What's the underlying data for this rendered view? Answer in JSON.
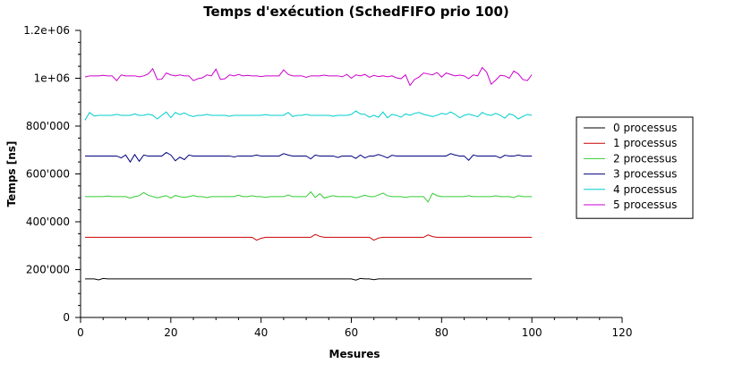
{
  "chart_data": {
    "type": "line",
    "title": "Temps d'exécution (SchedFIFO prio 100)",
    "xlabel": "Mesures",
    "ylabel": "Temps [ns]",
    "xlim": [
      0,
      120
    ],
    "ylim": [
      0,
      1200000
    ],
    "x_ticks": [
      0,
      20,
      40,
      60,
      80,
      100,
      120
    ],
    "x_tick_labels": [
      "0",
      "20",
      "40",
      "60",
      "80",
      "100",
      "120"
    ],
    "y_ticks": [
      0,
      200000,
      400000,
      600000,
      800000,
      1000000,
      1200000
    ],
    "y_tick_labels": [
      "0",
      "200'000",
      "400'000",
      "600'000",
      "800'000",
      "1e+06",
      "1.2e+06"
    ],
    "grid": false,
    "legend_position": "right",
    "x_start": 1,
    "x_end": 100,
    "series": [
      {
        "name": "0 processus",
        "color": "#000000",
        "base": 161000,
        "deviations": [
          [
            4,
            -4000
          ],
          [
            5,
            2000
          ],
          [
            61,
            -5000
          ],
          [
            62,
            2000
          ],
          [
            65,
            -3000
          ]
        ]
      },
      {
        "name": "1 processus",
        "color": "#cc0000",
        "base": 335000,
        "deviations": [
          [
            39,
            -12000
          ],
          [
            40,
            -4000
          ],
          [
            52,
            12000
          ],
          [
            53,
            4000
          ],
          [
            65,
            -12000
          ],
          [
            66,
            -3000
          ],
          [
            77,
            10000
          ],
          [
            78,
            3000
          ]
        ]
      },
      {
        "name": "2 processus",
        "color": "#33cc33",
        "base": 505000,
        "deviations": [
          [
            6,
            3000
          ],
          [
            11,
            -6000
          ],
          [
            13,
            4000
          ],
          [
            14,
            17000
          ],
          [
            15,
            6000
          ],
          [
            17,
            -5000
          ],
          [
            19,
            4000
          ],
          [
            20,
            -6000
          ],
          [
            21,
            5000
          ],
          [
            23,
            -3000
          ],
          [
            25,
            5000
          ],
          [
            28,
            -4000
          ],
          [
            35,
            6000
          ],
          [
            38,
            4000
          ],
          [
            41,
            -3000
          ],
          [
            46,
            7000
          ],
          [
            51,
            20000
          ],
          [
            52,
            -3000
          ],
          [
            53,
            12000
          ],
          [
            54,
            -6000
          ],
          [
            56,
            4000
          ],
          [
            61,
            -5000
          ],
          [
            63,
            6000
          ],
          [
            66,
            7000
          ],
          [
            67,
            15000
          ],
          [
            68,
            4000
          ],
          [
            72,
            -3000
          ],
          [
            77,
            -22000
          ],
          [
            78,
            14000
          ],
          [
            79,
            4000
          ],
          [
            86,
            4000
          ],
          [
            92,
            4000
          ],
          [
            96,
            -4000
          ],
          [
            97,
            4000
          ]
        ]
      },
      {
        "name": "3 processus",
        "color": "#000080",
        "base": 675000,
        "deviations": [
          [
            9,
            -8000
          ],
          [
            10,
            4000
          ],
          [
            11,
            -25000
          ],
          [
            12,
            6000
          ],
          [
            13,
            -22000
          ],
          [
            14,
            4000
          ],
          [
            19,
            15000
          ],
          [
            20,
            4000
          ],
          [
            21,
            -20000
          ],
          [
            22,
            -5000
          ],
          [
            23,
            -15000
          ],
          [
            24,
            4000
          ],
          [
            34,
            -4000
          ],
          [
            39,
            4000
          ],
          [
            45,
            10000
          ],
          [
            46,
            4000
          ],
          [
            51,
            -12000
          ],
          [
            52,
            4000
          ],
          [
            57,
            -6000
          ],
          [
            61,
            -10000
          ],
          [
            62,
            4000
          ],
          [
            63,
            -8000
          ],
          [
            66,
            6000
          ],
          [
            68,
            -8000
          ],
          [
            69,
            3000
          ],
          [
            82,
            10000
          ],
          [
            83,
            4000
          ],
          [
            86,
            -18000
          ],
          [
            87,
            4000
          ],
          [
            93,
            -8000
          ],
          [
            94,
            3000
          ],
          [
            97,
            4000
          ]
        ]
      },
      {
        "name": "4 processus",
        "color": "#00cccc",
        "base": 845000,
        "deviations": [
          [
            1,
            -20000
          ],
          [
            2,
            12000
          ],
          [
            3,
            -3000
          ],
          [
            8,
            4000
          ],
          [
            12,
            6000
          ],
          [
            15,
            5000
          ],
          [
            17,
            -15000
          ],
          [
            19,
            14000
          ],
          [
            20,
            -10000
          ],
          [
            21,
            12000
          ],
          [
            22,
            3000
          ],
          [
            23,
            10000
          ],
          [
            25,
            -5000
          ],
          [
            28,
            4000
          ],
          [
            33,
            -4000
          ],
          [
            41,
            3000
          ],
          [
            46,
            12000
          ],
          [
            47,
            -5000
          ],
          [
            50,
            4000
          ],
          [
            56,
            -4000
          ],
          [
            60,
            4000
          ],
          [
            61,
            18000
          ],
          [
            62,
            6000
          ],
          [
            63,
            4000
          ],
          [
            64,
            -8000
          ],
          [
            66,
            -8000
          ],
          [
            67,
            14000
          ],
          [
            68,
            -10000
          ],
          [
            69,
            4000
          ],
          [
            71,
            -8000
          ],
          [
            72,
            6000
          ],
          [
            74,
            8000
          ],
          [
            75,
            12000
          ],
          [
            76,
            4000
          ],
          [
            78,
            -5000
          ],
          [
            80,
            8000
          ],
          [
            81,
            4000
          ],
          [
            82,
            14000
          ],
          [
            83,
            4000
          ],
          [
            84,
            -10000
          ],
          [
            86,
            5000
          ],
          [
            88,
            -6000
          ],
          [
            89,
            12000
          ],
          [
            90,
            3000
          ],
          [
            92,
            8000
          ],
          [
            94,
            -12000
          ],
          [
            95,
            6000
          ],
          [
            97,
            -15000
          ],
          [
            98,
            -5000
          ],
          [
            99,
            4000
          ]
        ]
      },
      {
        "name": "5 processus",
        "color": "#cc00cc",
        "base": 1010000,
        "deviations": [
          [
            1,
            -5000
          ],
          [
            5,
            2000
          ],
          [
            8,
            -20000
          ],
          [
            9,
            4000
          ],
          [
            13,
            -4000
          ],
          [
            15,
            8000
          ],
          [
            16,
            30000
          ],
          [
            17,
            -15000
          ],
          [
            18,
            -14000
          ],
          [
            19,
            12000
          ],
          [
            20,
            4000
          ],
          [
            22,
            4000
          ],
          [
            25,
            -20000
          ],
          [
            26,
            -12000
          ],
          [
            27,
            -8000
          ],
          [
            28,
            4000
          ],
          [
            30,
            28000
          ],
          [
            31,
            -15000
          ],
          [
            32,
            -12000
          ],
          [
            33,
            4000
          ],
          [
            35,
            6000
          ],
          [
            37,
            2000
          ],
          [
            40,
            -3000
          ],
          [
            45,
            25000
          ],
          [
            46,
            6000
          ],
          [
            50,
            -6000
          ],
          [
            54,
            3000
          ],
          [
            58,
            -4000
          ],
          [
            59,
            6000
          ],
          [
            60,
            -10000
          ],
          [
            61,
            4000
          ],
          [
            63,
            6000
          ],
          [
            64,
            -6000
          ],
          [
            65,
            2000
          ],
          [
            66,
            -3000
          ],
          [
            68,
            -4000
          ],
          [
            70,
            -8000
          ],
          [
            71,
            -12000
          ],
          [
            72,
            4000
          ],
          [
            73,
            -40000
          ],
          [
            74,
            -15000
          ],
          [
            75,
            -5000
          ],
          [
            76,
            12000
          ],
          [
            77,
            8000
          ],
          [
            78,
            4000
          ],
          [
            79,
            14000
          ],
          [
            80,
            -5000
          ],
          [
            81,
            12000
          ],
          [
            82,
            6000
          ],
          [
            84,
            3000
          ],
          [
            86,
            -12000
          ],
          [
            87,
            4000
          ],
          [
            89,
            35000
          ],
          [
            90,
            15000
          ],
          [
            91,
            -35000
          ],
          [
            92,
            -18000
          ],
          [
            93,
            2000
          ],
          [
            95,
            -10000
          ],
          [
            96,
            20000
          ],
          [
            97,
            8000
          ],
          [
            98,
            -15000
          ],
          [
            99,
            -20000
          ],
          [
            100,
            5000
          ]
        ]
      }
    ]
  }
}
